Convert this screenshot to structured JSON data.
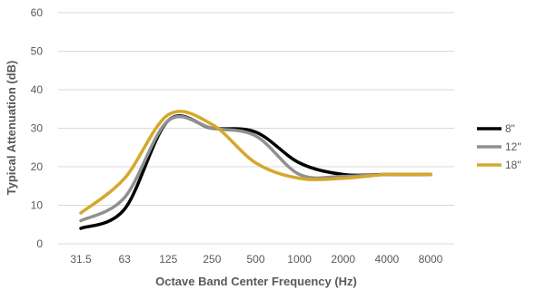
{
  "chart_data": {
    "type": "line",
    "title": "",
    "xlabel": "Octave Band Center Frequency (Hz)",
    "ylabel": "Typical Attenuation (dB)",
    "categories": [
      "31.5",
      "63",
      "125",
      "250",
      "500",
      "1000",
      "2000",
      "4000",
      "8000"
    ],
    "ylim": [
      0,
      60
    ],
    "yticks": [
      "0",
      "10",
      "20",
      "30",
      "40",
      "50",
      "60"
    ],
    "grid": true,
    "legend_position": "right",
    "series": [
      {
        "name": "8\"",
        "color": "#000000",
        "values": [
          4,
          9,
          32,
          30,
          29,
          21,
          18,
          18,
          18
        ]
      },
      {
        "name": "12\"",
        "color": "#909090",
        "values": [
          6,
          12,
          32,
          30,
          28,
          18,
          17.5,
          18,
          18
        ]
      },
      {
        "name": "18\"",
        "color": "#d4a82a",
        "values": [
          8,
          17,
          33.5,
          31,
          21,
          17,
          17,
          18,
          18
        ]
      }
    ]
  }
}
